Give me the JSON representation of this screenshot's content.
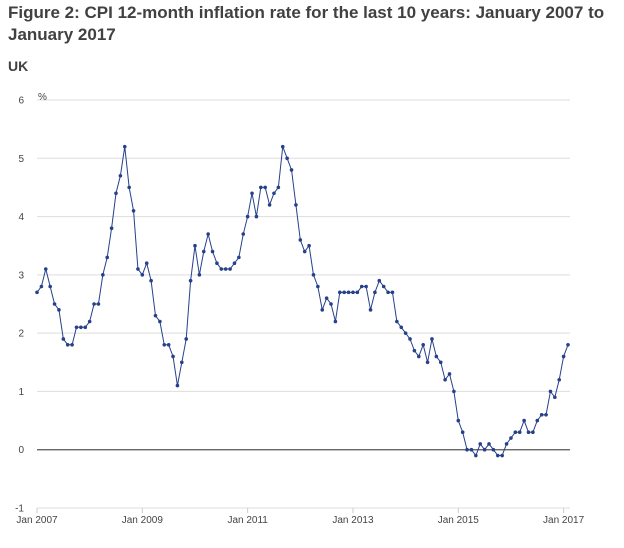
{
  "chart_data": {
    "type": "line",
    "title": "Figure 2: CPI 12-month inflation rate for the last 10 years: January 2007 to January 2017",
    "subtitle": "UK",
    "ylabel": "%",
    "xlabel": "",
    "ylim": [
      -1,
      6
    ],
    "yticks": [
      "-1",
      "0",
      "1",
      "2",
      "3",
      "4",
      "5",
      "6"
    ],
    "xticks": [
      "Jan 2007",
      "Jan 2009",
      "Jan 2011",
      "Jan 2013",
      "Jan 2015",
      "Jan 2017"
    ],
    "grid": true,
    "legend": "none",
    "line_color": "#26408b",
    "zero_line_color": "#555555",
    "series": [
      {
        "values": [
          2.7,
          2.8,
          3.1,
          2.8,
          2.5,
          2.4,
          1.9,
          1.8,
          1.8,
          2.1,
          2.1,
          2.1,
          2.2,
          2.5,
          2.5,
          3.0,
          3.3,
          3.8,
          4.4,
          4.7,
          5.2,
          4.5,
          4.1,
          3.1,
          3.0,
          3.2,
          2.9,
          2.3,
          2.2,
          1.8,
          1.8,
          1.6,
          1.1,
          1.5,
          1.9,
          2.9,
          3.5,
          3.0,
          3.4,
          3.7,
          3.4,
          3.2,
          3.1,
          3.1,
          3.1,
          3.2,
          3.3,
          3.7,
          4.0,
          4.4,
          4.0,
          4.5,
          4.5,
          4.2,
          4.4,
          4.5,
          5.2,
          5.0,
          4.8,
          4.2,
          3.6,
          3.4,
          3.5,
          3.0,
          2.8,
          2.4,
          2.6,
          2.5,
          2.2,
          2.7,
          2.7,
          2.7,
          2.7,
          2.7,
          2.8,
          2.8,
          2.4,
          2.7,
          2.9,
          2.8,
          2.7,
          2.7,
          2.2,
          2.1,
          2.0,
          1.9,
          1.7,
          1.6,
          1.8,
          1.5,
          1.9,
          1.6,
          1.5,
          1.2,
          1.3,
          1.0,
          0.5,
          0.3,
          0.0,
          0.0,
          -0.1,
          0.1,
          0.0,
          0.1,
          0.0,
          -0.1,
          -0.1,
          0.1,
          0.2,
          0.3,
          0.3,
          0.5,
          0.3,
          0.3,
          0.5,
          0.6,
          0.6,
          1.0,
          0.9,
          1.2,
          1.6,
          1.8
        ]
      }
    ]
  }
}
